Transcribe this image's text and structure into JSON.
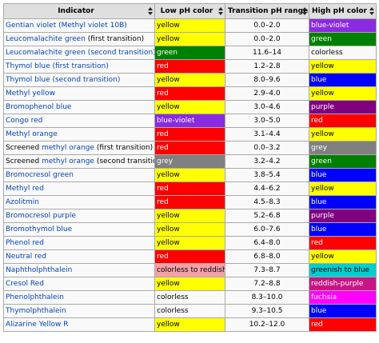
{
  "headers": [
    "Indicator",
    "Low pH color",
    "Transition pH range",
    "High pH color"
  ],
  "rows": [
    {
      "name": [
        {
          "text": "Gentian violet (",
          "link": true
        },
        {
          "text": "Methyl violet 10B",
          "link": true
        },
        {
          "text": ")",
          "link": true
        }
      ],
      "low": {
        "text": "yellow",
        "bg": "#ffff00",
        "fg": "#000000"
      },
      "range": "0.0–2.0",
      "high": {
        "text": "blue-violet",
        "bg": "#8a2be2",
        "fg": "#ffffff"
      }
    },
    {
      "name": [
        {
          "text": "Leucomalachite green",
          "link": true
        },
        {
          "text": " (first transition)",
          "link": false
        }
      ],
      "low": {
        "text": "yellow",
        "bg": "#ffff00",
        "fg": "#000000"
      },
      "range": "0.0–2.0",
      "high": {
        "text": "green",
        "bg": "#008000",
        "fg": "#ffffff"
      }
    },
    {
      "name": [
        {
          "text": "Leucomalachite green",
          "link": true
        },
        {
          "text": " (second transition)",
          "link": true
        }
      ],
      "low": {
        "text": "green",
        "bg": "#008000",
        "fg": "#ffffff"
      },
      "range": "11.6–14",
      "high": {
        "text": "colorless",
        "bg": "#f9f9f9",
        "fg": "#000000"
      }
    },
    {
      "name": [
        {
          "text": "Thymol blue",
          "link": true
        },
        {
          "text": " (first transition)",
          "link": true
        }
      ],
      "low": {
        "text": "red",
        "bg": "#ff0000",
        "fg": "#ffffff"
      },
      "range": "1.2–2.8",
      "high": {
        "text": "yellow",
        "bg": "#ffff00",
        "fg": "#000000"
      }
    },
    {
      "name": [
        {
          "text": "Thymol blue",
          "link": true
        },
        {
          "text": " (second transition)",
          "link": true
        }
      ],
      "low": {
        "text": "yellow",
        "bg": "#ffff00",
        "fg": "#000000"
      },
      "range": "8.0–9.6",
      "high": {
        "text": "blue",
        "bg": "#0000ff",
        "fg": "#ffffff"
      }
    },
    {
      "name": [
        {
          "text": "Methyl yellow",
          "link": true
        }
      ],
      "low": {
        "text": "red",
        "bg": "#ff0000",
        "fg": "#ffffff"
      },
      "range": "2.9–4.0",
      "high": {
        "text": "yellow",
        "bg": "#ffff00",
        "fg": "#000000"
      }
    },
    {
      "name": [
        {
          "text": "Bromophenol blue",
          "link": true
        }
      ],
      "low": {
        "text": "yellow",
        "bg": "#ffff00",
        "fg": "#000000"
      },
      "range": "3.0–4.6",
      "high": {
        "text": "purple",
        "bg": "#800080",
        "fg": "#ffffff"
      }
    },
    {
      "name": [
        {
          "text": "Congo red",
          "link": true
        }
      ],
      "low": {
        "text": "blue-violet",
        "bg": "#8a2be2",
        "fg": "#ffffff"
      },
      "range": "3.0–5.0",
      "high": {
        "text": "red",
        "bg": "#ff0000",
        "fg": "#ffffff"
      }
    },
    {
      "name": [
        {
          "text": "Methyl orange",
          "link": true
        }
      ],
      "low": {
        "text": "red",
        "bg": "#ff0000",
        "fg": "#ffffff"
      },
      "range": "3.1–4.4",
      "high": {
        "text": "yellow",
        "bg": "#ffff00",
        "fg": "#000000"
      }
    },
    {
      "name": [
        {
          "text": "Screened ",
          "link": false
        },
        {
          "text": "methyl orange",
          "link": true
        },
        {
          "text": " (first transition)",
          "link": false
        }
      ],
      "low": {
        "text": "red",
        "bg": "#ff0000",
        "fg": "#ffffff"
      },
      "range": "0.0–3.2",
      "high": {
        "text": "grey",
        "bg": "#808080",
        "fg": "#ffffff"
      }
    },
    {
      "name": [
        {
          "text": "Screened ",
          "link": false
        },
        {
          "text": "methyl orange",
          "link": true
        },
        {
          "text": " (second transition)",
          "link": false
        }
      ],
      "low": {
        "text": "grey",
        "bg": "#808080",
        "fg": "#ffffff"
      },
      "range": "3.2–4.2",
      "high": {
        "text": "green",
        "bg": "#008000",
        "fg": "#ffffff"
      }
    },
    {
      "name": [
        {
          "text": "Bromocresol green",
          "link": true
        }
      ],
      "low": {
        "text": "yellow",
        "bg": "#ffff00",
        "fg": "#000000"
      },
      "range": "3.8–5.4",
      "high": {
        "text": "blue",
        "bg": "#0000ff",
        "fg": "#ffffff"
      }
    },
    {
      "name": [
        {
          "text": "Methyl red",
          "link": true
        }
      ],
      "low": {
        "text": "red",
        "bg": "#ff0000",
        "fg": "#ffffff"
      },
      "range": "4.4–6.2",
      "high": {
        "text": "yellow",
        "bg": "#ffff00",
        "fg": "#000000"
      }
    },
    {
      "name": [
        {
          "text": "Azolitmin",
          "link": true
        }
      ],
      "low": {
        "text": "red",
        "bg": "#ff0000",
        "fg": "#ffffff"
      },
      "range": "4.5–8.3",
      "high": {
        "text": "blue",
        "bg": "#0000ff",
        "fg": "#ffffff"
      }
    },
    {
      "name": [
        {
          "text": "Bromocresol purple",
          "link": true
        }
      ],
      "low": {
        "text": "yellow",
        "bg": "#ffff00",
        "fg": "#000000"
      },
      "range": "5.2–6.8",
      "high": {
        "text": "purple",
        "bg": "#800080",
        "fg": "#ffffff"
      }
    },
    {
      "name": [
        {
          "text": "Bromothymol blue",
          "link": true
        }
      ],
      "low": {
        "text": "yellow",
        "bg": "#ffff00",
        "fg": "#000000"
      },
      "range": "6.0–7.6",
      "high": {
        "text": "blue",
        "bg": "#0000ff",
        "fg": "#ffffff"
      }
    },
    {
      "name": [
        {
          "text": "Phenol red",
          "link": true
        }
      ],
      "low": {
        "text": "yellow",
        "bg": "#ffff00",
        "fg": "#000000"
      },
      "range": "6.4–8.0",
      "high": {
        "text": "red",
        "bg": "#ff0000",
        "fg": "#ffffff"
      }
    },
    {
      "name": [
        {
          "text": "Neutral red",
          "link": true
        }
      ],
      "low": {
        "text": "red",
        "bg": "#ff0000",
        "fg": "#ffffff"
      },
      "range": "6.8–8.0",
      "high": {
        "text": "yellow",
        "bg": "#ffff00",
        "fg": "#000000"
      }
    },
    {
      "name": [
        {
          "text": "Naphtholphthalein",
          "link": true
        }
      ],
      "low": {
        "text": "colorless to reddish",
        "bg": "#f4a0a8",
        "fg": "#000000"
      },
      "range": "7.3–8.7",
      "high": {
        "text": "greenish to blue",
        "bg": "#00ced1",
        "fg": "#000000"
      }
    },
    {
      "name": [
        {
          "text": "Cresol Red",
          "link": true
        }
      ],
      "low": {
        "text": "yellow",
        "bg": "#ffff00",
        "fg": "#000000"
      },
      "range": "7.2–8.8",
      "high": {
        "text": "reddish-purple",
        "bg": "#c71585",
        "fg": "#ffffff"
      }
    },
    {
      "name": [
        {
          "text": "Phenolphthalein",
          "link": true
        }
      ],
      "low": {
        "text": "colorless",
        "bg": "#f9f9f9",
        "fg": "#000000"
      },
      "range": "8.3–10.0",
      "high": {
        "text": "fuchsia",
        "bg": "#ff00ff",
        "fg": "#ffffff"
      }
    },
    {
      "name": [
        {
          "text": "Thymolphthalein",
          "link": true
        }
      ],
      "low": {
        "text": "colorless",
        "bg": "#f9f9f9",
        "fg": "#000000"
      },
      "range": "9.3–10.5",
      "high": {
        "text": "blue",
        "bg": "#0000ff",
        "fg": "#ffffff"
      }
    },
    {
      "name": [
        {
          "text": "Alizarine Yellow R",
          "link": true
        }
      ],
      "low": {
        "text": "yellow",
        "bg": "#ffff00",
        "fg": "#000000"
      },
      "range": "10.2–12.0",
      "high": {
        "text": "red",
        "bg": "#ff0000",
        "fg": "#ffffff"
      }
    }
  ]
}
